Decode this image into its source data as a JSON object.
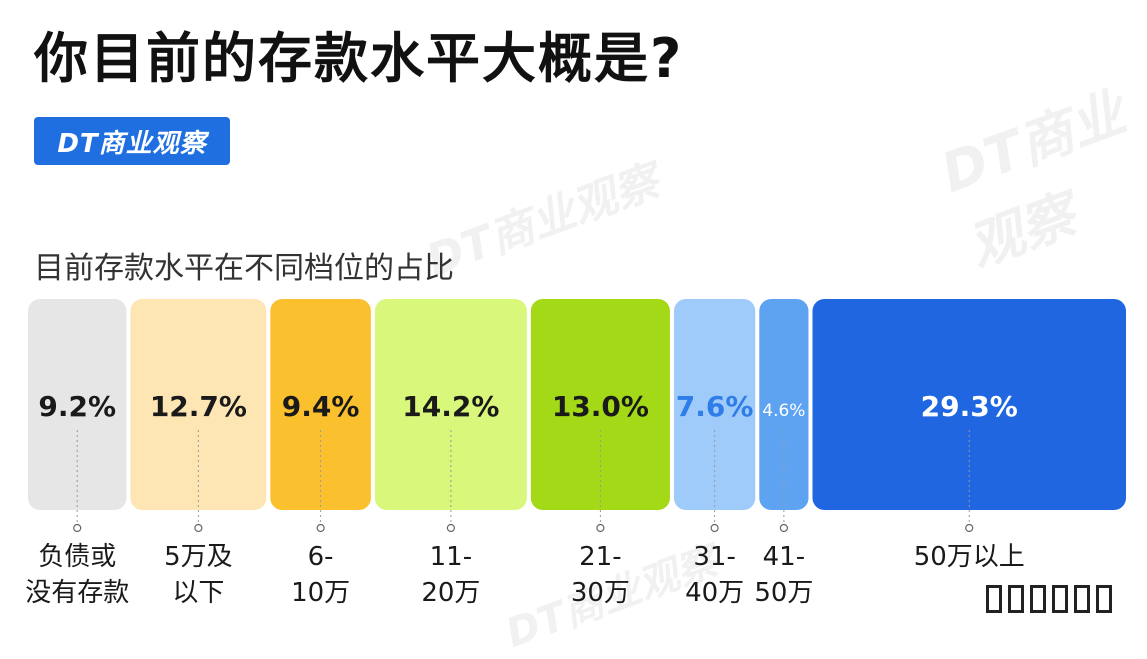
{
  "header": {
    "title": "你目前的存款水平大概是?",
    "brand": "DT商业观察",
    "watermark": "DT商业观察"
  },
  "chart_data": {
    "type": "bar",
    "subtitle": "目前存款水平在不同档位的占比",
    "categories": [
      "负债或没有存款",
      "5万及以下",
      "6-10万",
      "11-20万",
      "21-30万",
      "31-40万",
      "41-50万",
      "50万以上"
    ],
    "category_lines": [
      [
        "负债或",
        "没有存款"
      ],
      [
        "5万及",
        "以下"
      ],
      [
        "6-",
        "10万"
      ],
      [
        "11-",
        "20万"
      ],
      [
        "21-",
        "30万"
      ],
      [
        "31-",
        "40万"
      ],
      [
        "41-",
        "50万"
      ],
      [
        "50万以上"
      ]
    ],
    "values": [
      9.2,
      12.7,
      9.4,
      14.2,
      13.0,
      7.6,
      4.6,
      29.3
    ],
    "value_labels": [
      "9.2%",
      "12.7%",
      "9.4%",
      "14.2%",
      "13.0%",
      "7.6%",
      "4.6%",
      "29.3%"
    ],
    "colors": [
      "#e6e6e6",
      "#fde5b4",
      "#fbc02d",
      "#d9f77a",
      "#a3d916",
      "#9fcbfa",
      "#5ea2f2",
      "#1f66e0"
    ],
    "label_colors": [
      "#1a1a1a",
      "#1a1a1a",
      "#1a1a1a",
      "#1a1a1a",
      "#1a1a1a",
      "#2f7de8",
      "#ffffff",
      "#ffffff"
    ],
    "unit": "%"
  }
}
